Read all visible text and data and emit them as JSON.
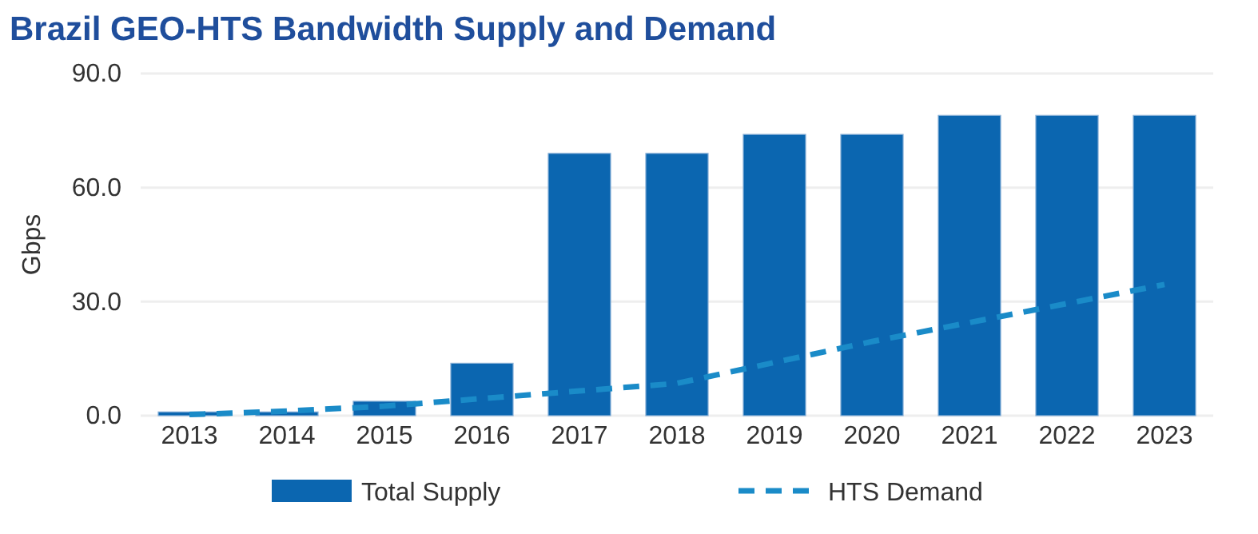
{
  "chart_data": {
    "type": "bar",
    "title": "Brazil GEO-HTS Bandwidth Supply and Demand",
    "ylabel": "Gbps",
    "categories": [
      "2013",
      "2014",
      "2015",
      "2016",
      "2017",
      "2018",
      "2019",
      "2020",
      "2021",
      "2022",
      "2023"
    ],
    "series": [
      {
        "name": "Total Supply",
        "color": "#0b66b0",
        "values": [
          1,
          1,
          3.8,
          13.8,
          69,
          69,
          74,
          74,
          79,
          79,
          79
        ]
      },
      {
        "name": "HTS Demand",
        "type": "line",
        "line_style": "dashed",
        "color": "#1a8bc8",
        "values": [
          0.3,
          1.2,
          2.5,
          4.5,
          6.5,
          8.5,
          14,
          19.5,
          24.5,
          29.5,
          34.5
        ]
      }
    ],
    "ylim": [
      0,
      90
    ],
    "yticks": [
      {
        "value": 0,
        "label": "0.0"
      },
      {
        "value": 30,
        "label": "30.0"
      },
      {
        "value": 60,
        "label": "60.0"
      },
      {
        "value": 90,
        "label": "90.0"
      }
    ],
    "grid": "y",
    "legend": "bottom"
  }
}
